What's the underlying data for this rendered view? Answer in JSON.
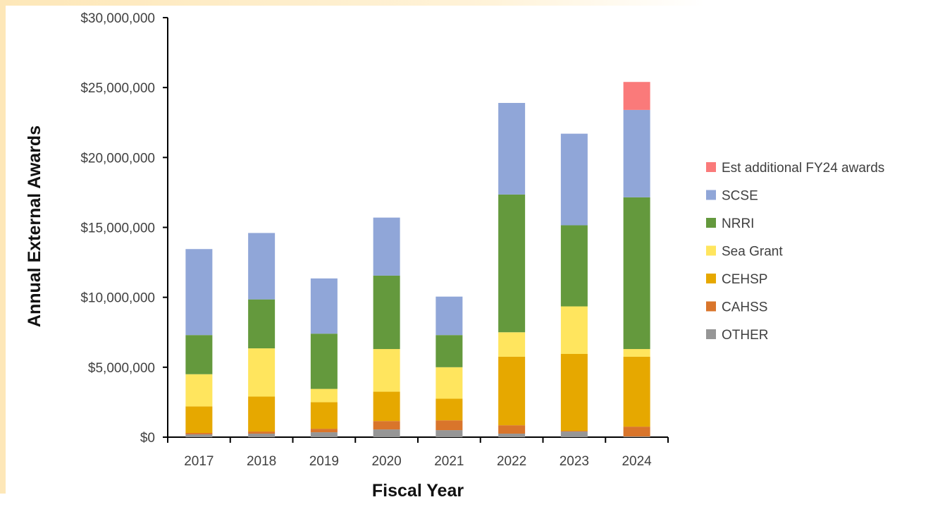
{
  "chart_data": {
    "type": "bar",
    "stacked": true,
    "title": "",
    "xlabel": "Fiscal Year",
    "ylabel": "Annual External Awards",
    "ylim": [
      0,
      30000000
    ],
    "y_ticks": [
      0,
      5000000,
      10000000,
      15000000,
      20000000,
      25000000,
      30000000
    ],
    "y_tick_labels": [
      "$0",
      "$5,000,000",
      "$10,000,000",
      "$15,000,000",
      "$20,000,000",
      "$25,000,000",
      "$30,000,000"
    ],
    "categories": [
      "2017",
      "2018",
      "2019",
      "2020",
      "2021",
      "2022",
      "2023",
      "2024"
    ],
    "legend_position": "right",
    "grid": false,
    "series": [
      {
        "name": "OTHER",
        "color": "#969696",
        "values": [
          200000,
          250000,
          350000,
          550000,
          500000,
          250000,
          400000,
          50000
        ]
      },
      {
        "name": "CAHSS",
        "color": "#d9752b",
        "values": [
          100000,
          150000,
          250000,
          600000,
          700000,
          600000,
          50000,
          700000
        ]
      },
      {
        "name": "CEHSP",
        "color": "#e6a800",
        "values": [
          1900000,
          2500000,
          1900000,
          2100000,
          1550000,
          4900000,
          5500000,
          5000000
        ]
      },
      {
        "name": "Sea Grant",
        "color": "#ffe55e",
        "values": [
          2300000,
          3450000,
          950000,
          3050000,
          2250000,
          1750000,
          3400000,
          550000
        ]
      },
      {
        "name": "NRRI",
        "color": "#64993d",
        "values": [
          2800000,
          3500000,
          3950000,
          5250000,
          2300000,
          9850000,
          5800000,
          10850000
        ]
      },
      {
        "name": "SCSE",
        "color": "#90a6d8",
        "values": [
          6150000,
          4750000,
          3950000,
          4150000,
          2750000,
          6550000,
          6550000,
          6250000
        ]
      },
      {
        "name": "Est additional FY24 awards",
        "color": "#fa7a7a",
        "values": [
          0,
          0,
          0,
          0,
          0,
          0,
          0,
          2000000
        ]
      }
    ],
    "legend_order": [
      "Est additional FY24 awards",
      "SCSE",
      "NRRI",
      "Sea Grant",
      "CEHSP",
      "CAHSS",
      "OTHER"
    ]
  }
}
